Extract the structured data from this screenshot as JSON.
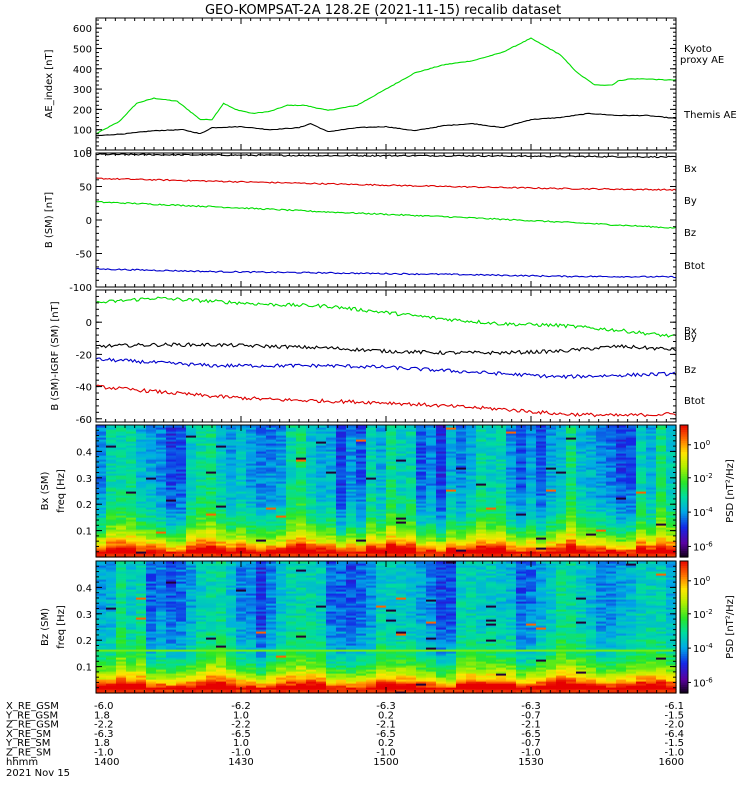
{
  "title": "GEO-KOMPSAT-2A 128.2E (2021-11-15) recalib dataset",
  "colors": {
    "black": "#000000",
    "red": "#dd0000",
    "green": "#00dd00",
    "blue": "#0000cc"
  },
  "chart_data": [
    {
      "type": "line",
      "ylabel": "AE_index [nT]",
      "ylim": [
        0,
        650
      ],
      "yticks": [
        0,
        100,
        200,
        300,
        400,
        500,
        600
      ],
      "series": [
        {
          "name": "Kyoto proxy AE",
          "label_lines": [
            "Kyoto",
            "proxy AE"
          ],
          "color": "green",
          "x": [
            0,
            4,
            7,
            10,
            14,
            18,
            20,
            22,
            24,
            27,
            30,
            33,
            36,
            40,
            45,
            50,
            55,
            60,
            65,
            70,
            75,
            80,
            83,
            86,
            89,
            90,
            92,
            95,
            98,
            100
          ],
          "y": [
            80,
            140,
            230,
            255,
            240,
            150,
            150,
            230,
            200,
            180,
            190,
            220,
            220,
            195,
            220,
            300,
            380,
            420,
            440,
            480,
            550,
            470,
            380,
            320,
            320,
            340,
            350,
            350,
            345,
            345
          ]
        },
        {
          "name": "Themis AE",
          "label_lines": [
            "Themis AE"
          ],
          "color": "black",
          "x": [
            0,
            5,
            10,
            15,
            18,
            20,
            25,
            30,
            35,
            37,
            40,
            45,
            50,
            55,
            60,
            65,
            70,
            75,
            80,
            85,
            90,
            95,
            100
          ],
          "y": [
            70,
            80,
            95,
            100,
            80,
            110,
            115,
            100,
            110,
            130,
            90,
            110,
            115,
            95,
            120,
            130,
            110,
            150,
            160,
            180,
            170,
            170,
            155
          ]
        }
      ]
    },
    {
      "type": "line",
      "ylabel": "B (SM) [nT]",
      "ylim": [
        -100,
        100
      ],
      "yticks": [
        -100,
        -50,
        0,
        50,
        100
      ],
      "series": [
        {
          "name": "Btot",
          "color": "black",
          "x": [
            0,
            20,
            40,
            60,
            80,
            100
          ],
          "y": [
            98,
            97,
            96,
            96,
            95,
            94
          ]
        },
        {
          "name": "Bz",
          "color": "red",
          "x": [
            0,
            20,
            40,
            60,
            80,
            100
          ],
          "y": [
            62,
            58,
            54,
            50,
            47,
            45
          ]
        },
        {
          "name": "By",
          "color": "green",
          "x": [
            0,
            20,
            40,
            60,
            80,
            100
          ],
          "y": [
            27,
            20,
            12,
            5,
            -3,
            -12
          ]
        },
        {
          "name": "Bx",
          "color": "blue",
          "x": [
            0,
            20,
            40,
            60,
            80,
            100
          ],
          "y": [
            -73,
            -77,
            -79,
            -81,
            -84,
            -85
          ]
        }
      ],
      "legend": [
        "Bx",
        "By",
        "Bz",
        "Btot"
      ]
    },
    {
      "type": "line",
      "ylabel": "B (SM)-IGRF (SM) [nT]",
      "ylim": [
        -62,
        20
      ],
      "yticks": [
        -60,
        -40,
        -20,
        0
      ],
      "series": [
        {
          "name": "By",
          "color": "green",
          "x": [
            0,
            10,
            20,
            30,
            40,
            50,
            60,
            70,
            80,
            90,
            100
          ],
          "y": [
            12,
            15,
            13,
            11,
            10,
            6,
            2,
            -1,
            -2,
            -5,
            -9
          ]
        },
        {
          "name": "Btot",
          "color": "black",
          "x": [
            0,
            10,
            20,
            30,
            40,
            50,
            60,
            70,
            80,
            90,
            100
          ],
          "y": [
            -15,
            -14,
            -14,
            -15,
            -16,
            -18,
            -19,
            -19,
            -18,
            -15,
            -17
          ]
        },
        {
          "name": "Bx",
          "color": "blue",
          "x": [
            0,
            10,
            20,
            30,
            40,
            50,
            60,
            70,
            80,
            90,
            100
          ],
          "y": [
            -23,
            -25,
            -27,
            -27,
            -27,
            -28,
            -30,
            -32,
            -34,
            -33,
            -32
          ]
        },
        {
          "name": "Bz",
          "color": "red",
          "x": [
            0,
            10,
            20,
            30,
            40,
            50,
            60,
            70,
            80,
            90,
            100
          ],
          "y": [
            -40,
            -43,
            -46,
            -48,
            -49,
            -50,
            -52,
            -54,
            -57,
            -58,
            -57
          ]
        }
      ],
      "legend": [
        "Bx",
        "By",
        "Bz",
        "Btot"
      ]
    },
    {
      "type": "heatmap",
      "ylabel_top": "Bx (SM)",
      "ylabel": "freq [Hz]",
      "ylim": [
        0,
        0.5
      ],
      "yticks": [
        0.1,
        0.2,
        0.3,
        0.4
      ],
      "colorbar_label": "PSD [nT^2/Hz]",
      "colorbar_ticks": [
        "10^0",
        "10^-2",
        "10^-4",
        "10^-6"
      ]
    },
    {
      "type": "heatmap",
      "ylabel_top": "Bz (SM)",
      "ylabel": "freq [Hz]",
      "ylim": [
        0,
        0.5
      ],
      "yticks": [
        0.1,
        0.2,
        0.3,
        0.4
      ],
      "colorbar_label": "PSD [nT^2/Hz]",
      "colorbar_ticks": [
        "10^0",
        "10^-2",
        "10^-4",
        "10^-6"
      ]
    }
  ],
  "ephemeris": {
    "rows": [
      {
        "label": "X_RE_GSM",
        "values": [
          "-6.0",
          "-6.2",
          "-6.3",
          "-6.3",
          "-6.1"
        ]
      },
      {
        "label": "Y_RE_GSM",
        "values": [
          "1.8",
          "1.0",
          "0.2",
          "-0.7",
          "-1.5"
        ]
      },
      {
        "label": "Z_RE_GSM",
        "values": [
          "-2.2",
          "-2.2",
          "-2.1",
          "-2.1",
          "-2.0"
        ]
      },
      {
        "label": "X_RE_SM",
        "values": [
          "-6.3",
          "-6.5",
          "-6.5",
          "-6.5",
          "-6.4"
        ]
      },
      {
        "label": "Y_RE_SM",
        "values": [
          "1.8",
          "1.0",
          "0.2",
          "-0.7",
          "-1.5"
        ]
      },
      {
        "label": "Z_RE_SM",
        "values": [
          "-1.0",
          "-1.0",
          "-1.0",
          "-1.0",
          "-1.0"
        ]
      },
      {
        "label": "hhmm",
        "values": [
          "1400",
          "1430",
          "1500",
          "1530",
          "1600"
        ]
      }
    ],
    "date": "2021 Nov 15"
  }
}
